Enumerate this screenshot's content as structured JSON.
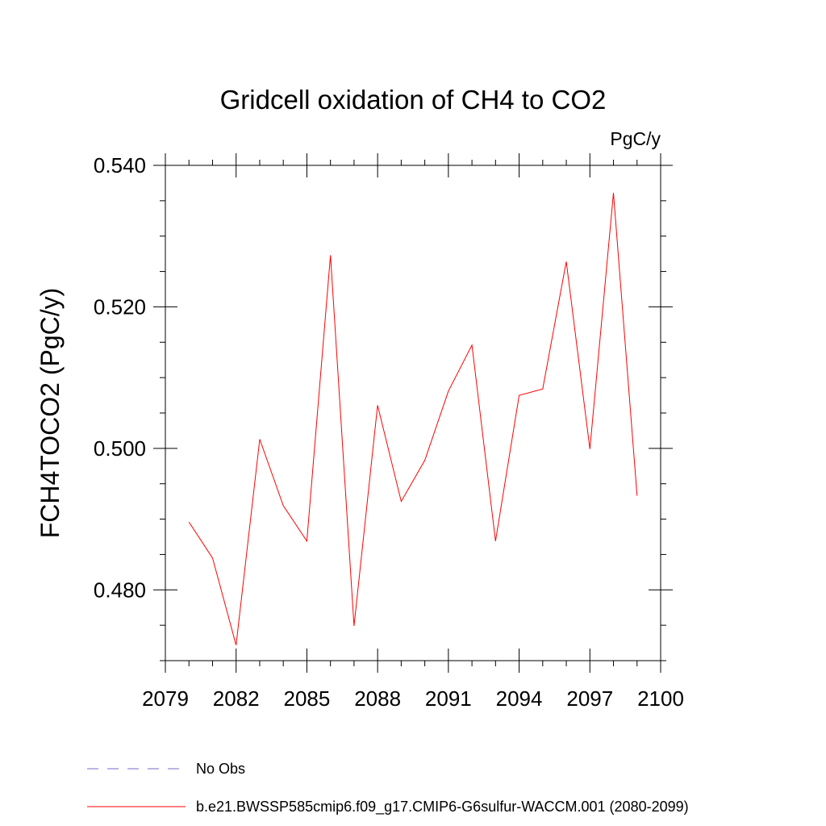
{
  "chart_data": {
    "type": "line",
    "title": "Gridcell oxidation of CH4 to CO2",
    "units": "PgC/y",
    "ylabel": "FCH4TOCO2  (PgC/y)",
    "xlabel": "",
    "xlim": [
      2079,
      2100
    ],
    "ylim": [
      0.47,
      0.54
    ],
    "x_ticks": [
      2079,
      2082,
      2085,
      2088,
      2091,
      2094,
      2097,
      2100
    ],
    "x_tick_labels": [
      "2079",
      "2082",
      "2085",
      "2088",
      "2091",
      "2094",
      "2097",
      "2100"
    ],
    "y_ticks": [
      0.48,
      0.5,
      0.52,
      0.54
    ],
    "y_tick_labels": [
      "0.480",
      "0.500",
      "0.520",
      "0.540"
    ],
    "grid": false,
    "legend_position": "bottom",
    "series": [
      {
        "name": "b.e21.BWSSP585cmip6.f09_g17.CMIP6-G6sulfur-WACCM.001 (2080-2099)",
        "color": "#ff0000",
        "style": "solid",
        "x": [
          2080,
          2081,
          2082,
          2083,
          2084,
          2085,
          2086,
          2087,
          2088,
          2089,
          2090,
          2091,
          2092,
          2093,
          2094,
          2095,
          2096,
          2097,
          2098,
          2099
        ],
        "y": [
          0.4896,
          0.4845,
          0.4722,
          0.5013,
          0.4919,
          0.4869,
          0.5273,
          0.4749,
          0.5061,
          0.4925,
          0.4983,
          0.5081,
          0.5146,
          0.4869,
          0.5075,
          0.5084,
          0.5264,
          0.4999,
          0.5361,
          0.4933
        ]
      }
    ],
    "legend": [
      {
        "label": "No Obs",
        "color": "#7b68c8",
        "style": "dashed"
      },
      {
        "label": "b.e21.BWSSP585cmip6.f09_g17.CMIP6-G6sulfur-WACCM.001 (2080-2099)",
        "color": "#ff0000",
        "style": "solid"
      }
    ]
  }
}
